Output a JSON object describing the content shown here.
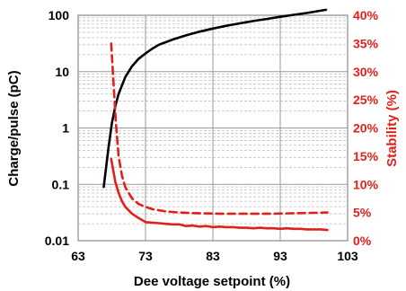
{
  "chart_data": {
    "type": "line",
    "xlabel": "Dee voltage setpoint (%)",
    "ylabel_left": "Charge/pulse (pC)",
    "ylabel_right": "Stability (%)",
    "xlim": [
      63,
      103
    ],
    "x_ticks": [
      "63",
      "73",
      "83",
      "93",
      "103"
    ],
    "ylim_left": [
      0.01,
      100
    ],
    "y_scale_left": "log",
    "y_ticks_left": [
      "0.01",
      "0.1",
      "1",
      "10",
      "100"
    ],
    "ylim_right": [
      0,
      40
    ],
    "y_ticks_right": [
      "0%",
      "5%",
      "10%",
      "15%",
      "20%",
      "25%",
      "30%",
      "35%",
      "40%"
    ],
    "grid": true,
    "series": [
      {
        "axis": "left",
        "style": "solid",
        "color": "#000000",
        "x": [
          66.8,
          67.5,
          68.0,
          68.5,
          69.0,
          70.0,
          71.0,
          72.0,
          73.0,
          74.0,
          75.0,
          77.0,
          79.0,
          81.0,
          83.0,
          85.0,
          87.0,
          89.0,
          91.0,
          93.0,
          95.0,
          97.0,
          99.8
        ],
        "values": [
          0.09,
          0.45,
          1.2,
          2.4,
          4.0,
          8.0,
          12.5,
          17.0,
          21.0,
          25.5,
          30.0,
          37.0,
          44.0,
          51.0,
          58.0,
          65.0,
          72.0,
          79.0,
          86.0,
          94.0,
          102.0,
          110.0,
          125.0
        ]
      },
      {
        "axis": "right",
        "style": "dashed",
        "color": "#e0201b",
        "x": [
          67.9,
          68.2,
          68.6,
          69.0,
          69.5,
          70.0,
          71.0,
          72.0,
          73.0,
          74.0,
          76.0,
          78.0,
          80.0,
          84.0,
          88.0,
          92.0,
          96.0,
          100.0
        ],
        "values": [
          35.0,
          29.0,
          21.0,
          15.0,
          11.5,
          9.5,
          7.5,
          6.5,
          6.0,
          5.6,
          5.2,
          5.0,
          4.9,
          4.8,
          4.8,
          4.8,
          4.9,
          5.0
        ]
      },
      {
        "axis": "right",
        "style": "solid",
        "color": "#e0201b",
        "x": [
          67.9,
          68.5,
          69.0,
          69.5,
          70.0,
          71.0,
          72.0,
          73.0,
          74.0,
          75.0,
          76.0,
          77.0,
          78.0,
          79.0,
          80.0,
          81.0,
          82.0,
          83.0,
          84.0,
          85.0,
          86.0,
          87.0,
          88.0,
          89.0,
          90.0,
          91.0,
          92.0,
          93.0,
          94.0,
          95.0,
          96.0,
          97.0,
          98.0,
          99.0,
          100.0
        ],
        "values": [
          14.5,
          10.5,
          8.5,
          7.0,
          6.0,
          4.8,
          4.0,
          3.3,
          3.2,
          3.1,
          3.0,
          2.9,
          2.9,
          2.6,
          2.7,
          2.5,
          2.6,
          2.4,
          2.5,
          2.4,
          2.4,
          2.3,
          2.3,
          2.2,
          2.3,
          2.2,
          2.2,
          2.1,
          2.2,
          2.1,
          2.1,
          2.0,
          2.0,
          2.0,
          1.9
        ]
      }
    ],
    "colors": {
      "left_axis": "#000000",
      "right_axis": "#e0201b",
      "grid": "#bfbfbf",
      "frame": "#8c8c8c"
    }
  }
}
